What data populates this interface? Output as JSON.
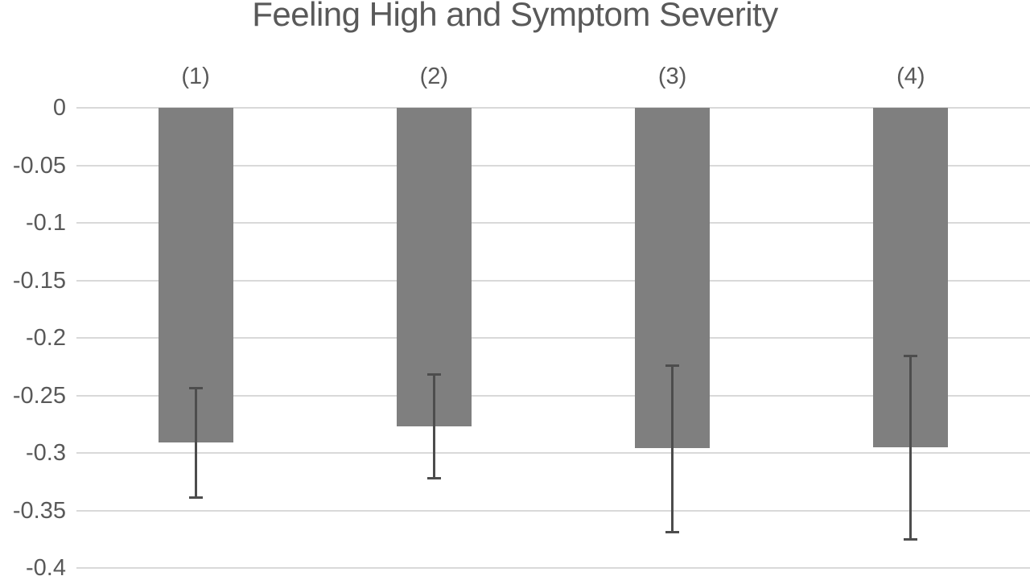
{
  "chart_data": {
    "type": "bar",
    "title": "Feeling High and Symptom Severity",
    "categories": [
      "(1)",
      "(2)",
      "(3)",
      "(4)"
    ],
    "values": [
      -0.291,
      -0.277,
      -0.296,
      -0.295
    ],
    "error_bars": [
      {
        "high": -0.244,
        "low": -0.339
      },
      {
        "high": -0.232,
        "low": -0.322
      },
      {
        "high": -0.224,
        "low": -0.369
      },
      {
        "high": -0.216,
        "low": -0.375
      }
    ],
    "y_tick_labels": [
      "0",
      "-0.05",
      "-0.1",
      "-0.15",
      "-0.2",
      "-0.25",
      "-0.3",
      "-0.35",
      "-0.4"
    ],
    "y_tick_values": [
      0,
      -0.05,
      -0.1,
      -0.15,
      -0.2,
      -0.25,
      -0.3,
      -0.35,
      -0.4
    ],
    "ylim": [
      0,
      -0.4
    ],
    "xlabel": "",
    "ylabel": "",
    "grid": true,
    "legend": false,
    "colors": {
      "bar": "#7f7f7f",
      "error_bar": "#4d4d4d",
      "gridline": "#d9d9d9",
      "text": "#595959",
      "background": "#ffffff"
    }
  }
}
